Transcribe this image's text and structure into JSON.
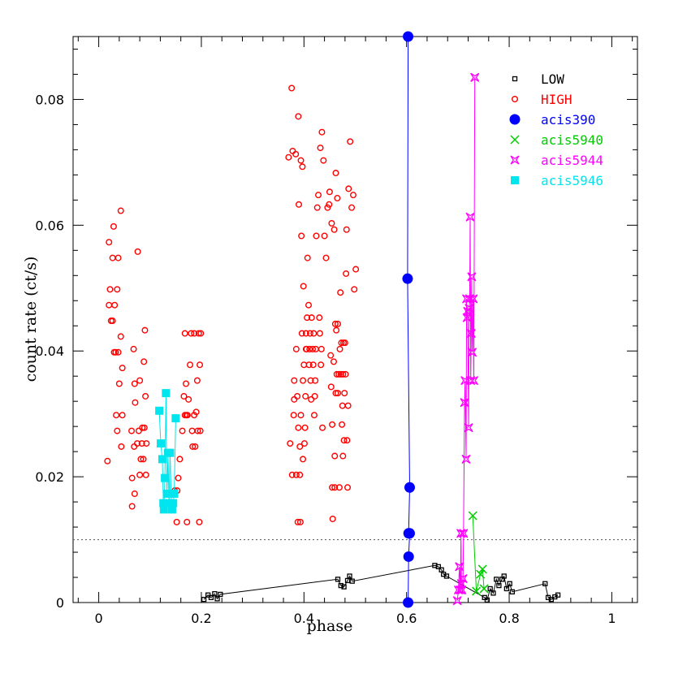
{
  "chart_data": {
    "type": "scatter",
    "title": "",
    "xlabel": "phase",
    "ylabel": "count rate (ct/s)",
    "xlim": [
      -0.05,
      1.05
    ],
    "ylim": [
      0,
      0.09
    ],
    "x_ticks": [
      0,
      0.2,
      0.4,
      0.6,
      0.8,
      1
    ],
    "x_tick_labels": [
      "0",
      "0.2",
      "0.4",
      "0.6",
      "0.8",
      "1"
    ],
    "y_ticks": [
      0,
      0.02,
      0.04,
      0.06,
      0.08
    ],
    "y_tick_labels": [
      "0",
      "0.02",
      "0.04",
      "0.06",
      "0.08"
    ],
    "reference_line": {
      "y": 0.01,
      "style": "dotted"
    },
    "legend_position": "top-right",
    "series": [
      {
        "name": "LOW",
        "color": "#000000",
        "marker": "open-square",
        "size": 5,
        "connected": true,
        "points": [
          [
            0.205,
            0.0005
          ],
          [
            0.213,
            0.0012
          ],
          [
            0.219,
            0.0008
          ],
          [
            0.226,
            0.0014
          ],
          [
            0.231,
            0.0006
          ],
          [
            0.237,
            0.0013
          ],
          [
            0.466,
            0.0037
          ],
          [
            0.472,
            0.0027
          ],
          [
            0.478,
            0.0025
          ],
          [
            0.485,
            0.0035
          ],
          [
            0.489,
            0.0042
          ],
          [
            0.494,
            0.0034
          ],
          [
            0.655,
            0.0059
          ],
          [
            0.662,
            0.0057
          ],
          [
            0.668,
            0.0052
          ],
          [
            0.672,
            0.0045
          ],
          [
            0.678,
            0.0042
          ],
          [
            0.752,
            0.0008
          ],
          [
            0.757,
            0.0004
          ],
          [
            0.763,
            0.0022
          ],
          [
            0.769,
            0.0015
          ],
          [
            0.775,
            0.0037
          ],
          [
            0.78,
            0.0027
          ],
          [
            0.786,
            0.0037
          ],
          [
            0.79,
            0.0042
          ],
          [
            0.795,
            0.0022
          ],
          [
            0.801,
            0.003
          ],
          [
            0.806,
            0.0017
          ],
          [
            0.87,
            0.003
          ],
          [
            0.876,
            0.0008
          ],
          [
            0.882,
            0.0005
          ],
          [
            0.889,
            0.0009
          ],
          [
            0.895,
            0.0012
          ]
        ]
      },
      {
        "name": "HIGH",
        "color": "#ff0000",
        "marker": "open-circle",
        "size": 3.3,
        "connected": false,
        "points": [
          [
            0.017,
            0.0225
          ],
          [
            0.02,
            0.0573
          ],
          [
            0.022,
            0.0498
          ],
          [
            0.02,
            0.0473
          ],
          [
            0.024,
            0.0448
          ],
          [
            0.027,
            0.0548
          ],
          [
            0.029,
            0.0598
          ],
          [
            0.027,
            0.0448
          ],
          [
            0.03,
            0.0398
          ],
          [
            0.031,
            0.0473
          ],
          [
            0.033,
            0.0398
          ],
          [
            0.034,
            0.0298
          ],
          [
            0.036,
            0.0273
          ],
          [
            0.036,
            0.0498
          ],
          [
            0.038,
            0.0548
          ],
          [
            0.038,
            0.0398
          ],
          [
            0.04,
            0.0348
          ],
          [
            0.043,
            0.0423
          ],
          [
            0.043,
            0.0623
          ],
          [
            0.044,
            0.0248
          ],
          [
            0.046,
            0.0298
          ],
          [
            0.046,
            0.0373
          ],
          [
            0.065,
            0.0153
          ],
          [
            0.064,
            0.0273
          ],
          [
            0.065,
            0.0198
          ],
          [
            0.068,
            0.0403
          ],
          [
            0.069,
            0.0248
          ],
          [
            0.07,
            0.0348
          ],
          [
            0.07,
            0.0173
          ],
          [
            0.071,
            0.0318
          ],
          [
            0.075,
            0.0253
          ],
          [
            0.076,
            0.0558
          ],
          [
            0.078,
            0.0273
          ],
          [
            0.08,
            0.0353
          ],
          [
            0.08,
            0.0203
          ],
          [
            0.082,
            0.0228
          ],
          [
            0.084,
            0.0253
          ],
          [
            0.085,
            0.0278
          ],
          [
            0.087,
            0.0228
          ],
          [
            0.088,
            0.0383
          ],
          [
            0.089,
            0.0278
          ],
          [
            0.09,
            0.0433
          ],
          [
            0.091,
            0.0328
          ],
          [
            0.092,
            0.0203
          ],
          [
            0.093,
            0.0253
          ],
          [
            0.148,
            0.0178
          ],
          [
            0.152,
            0.0128
          ],
          [
            0.153,
            0.0178
          ],
          [
            0.155,
            0.0198
          ],
          [
            0.158,
            0.0228
          ],
          [
            0.163,
            0.0273
          ],
          [
            0.166,
            0.0328
          ],
          [
            0.168,
            0.0428
          ],
          [
            0.168,
            0.0298
          ],
          [
            0.17,
            0.0348
          ],
          [
            0.171,
            0.0298
          ],
          [
            0.172,
            0.0128
          ],
          [
            0.173,
            0.0298
          ],
          [
            0.175,
            0.0323
          ],
          [
            0.178,
            0.0378
          ],
          [
            0.18,
            0.0428
          ],
          [
            0.182,
            0.0273
          ],
          [
            0.183,
            0.0248
          ],
          [
            0.186,
            0.0298
          ],
          [
            0.186,
            0.0428
          ],
          [
            0.188,
            0.0248
          ],
          [
            0.19,
            0.0303
          ],
          [
            0.192,
            0.0353
          ],
          [
            0.193,
            0.0273
          ],
          [
            0.195,
            0.0428
          ],
          [
            0.196,
            0.0128
          ],
          [
            0.197,
            0.0378
          ],
          [
            0.198,
            0.0273
          ],
          [
            0.199,
            0.0428
          ],
          [
            0.37,
            0.0708
          ],
          [
            0.373,
            0.0253
          ],
          [
            0.376,
            0.0818
          ],
          [
            0.377,
            0.0203
          ],
          [
            0.378,
            0.0718
          ],
          [
            0.38,
            0.0298
          ],
          [
            0.381,
            0.0323
          ],
          [
            0.381,
            0.0353
          ],
          [
            0.384,
            0.0713
          ],
          [
            0.385,
            0.0403
          ],
          [
            0.385,
            0.0203
          ],
          [
            0.387,
            0.0328
          ],
          [
            0.388,
            0.0128
          ],
          [
            0.389,
            0.0773
          ],
          [
            0.389,
            0.0278
          ],
          [
            0.39,
            0.0633
          ],
          [
            0.392,
            0.0203
          ],
          [
            0.392,
            0.0248
          ],
          [
            0.393,
            0.0128
          ],
          [
            0.394,
            0.0298
          ],
          [
            0.394,
            0.0703
          ],
          [
            0.395,
            0.0583
          ],
          [
            0.396,
            0.0428
          ],
          [
            0.397,
            0.0693
          ],
          [
            0.398,
            0.0353
          ],
          [
            0.398,
            0.0228
          ],
          [
            0.399,
            0.0503
          ],
          [
            0.4,
            0.0378
          ],
          [
            0.401,
            0.0253
          ],
          [
            0.402,
            0.0278
          ],
          [
            0.403,
            0.0328
          ],
          [
            0.404,
            0.0403
          ],
          [
            0.404,
            0.0428
          ],
          [
            0.405,
            0.0403
          ],
          [
            0.406,
            0.0453
          ],
          [
            0.407,
            0.0548
          ],
          [
            0.409,
            0.0473
          ],
          [
            0.41,
            0.0378
          ],
          [
            0.411,
            0.0403
          ],
          [
            0.412,
            0.0428
          ],
          [
            0.413,
            0.0353
          ],
          [
            0.414,
            0.0323
          ],
          [
            0.415,
            0.0453
          ],
          [
            0.417,
            0.0403
          ],
          [
            0.418,
            0.0378
          ],
          [
            0.419,
            0.0428
          ],
          [
            0.42,
            0.0298
          ],
          [
            0.421,
            0.0328
          ],
          [
            0.422,
            0.0353
          ],
          [
            0.423,
            0.0403
          ],
          [
            0.424,
            0.0583
          ],
          [
            0.426,
            0.0628
          ],
          [
            0.428,
            0.0648
          ],
          [
            0.43,
            0.0453
          ],
          [
            0.431,
            0.0428
          ],
          [
            0.432,
            0.0723
          ],
          [
            0.433,
            0.0378
          ],
          [
            0.434,
            0.0403
          ],
          [
            0.435,
            0.0748
          ],
          [
            0.436,
            0.0278
          ],
          [
            0.438,
            0.0703
          ],
          [
            0.44,
            0.0583
          ],
          [
            0.443,
            0.0548
          ],
          [
            0.446,
            0.0628
          ],
          [
            0.449,
            0.0633
          ],
          [
            0.45,
            0.0653
          ],
          [
            0.452,
            0.0393
          ],
          [
            0.453,
            0.0343
          ],
          [
            0.454,
            0.0603
          ],
          [
            0.455,
            0.0283
          ],
          [
            0.455,
            0.0183
          ],
          [
            0.456,
            0.0133
          ],
          [
            0.458,
            0.0383
          ],
          [
            0.459,
            0.0593
          ],
          [
            0.46,
            0.0233
          ],
          [
            0.46,
            0.0183
          ],
          [
            0.461,
            0.0443
          ],
          [
            0.462,
            0.0683
          ],
          [
            0.462,
            0.0333
          ],
          [
            0.463,
            0.0433
          ],
          [
            0.464,
            0.0363
          ],
          [
            0.465,
            0.0643
          ],
          [
            0.466,
            0.0443
          ],
          [
            0.466,
            0.0333
          ],
          [
            0.468,
            0.0363
          ],
          [
            0.469,
            0.0183
          ],
          [
            0.47,
            0.0403
          ],
          [
            0.471,
            0.0493
          ],
          [
            0.472,
            0.0363
          ],
          [
            0.473,
            0.0413
          ],
          [
            0.474,
            0.0283
          ],
          [
            0.475,
            0.0313
          ],
          [
            0.476,
            0.0363
          ],
          [
            0.476,
            0.0233
          ],
          [
            0.477,
            0.0413
          ],
          [
            0.478,
            0.0258
          ],
          [
            0.479,
            0.0333
          ],
          [
            0.48,
            0.0413
          ],
          [
            0.481,
            0.0363
          ],
          [
            0.482,
            0.0523
          ],
          [
            0.483,
            0.0593
          ],
          [
            0.484,
            0.0258
          ],
          [
            0.485,
            0.0183
          ],
          [
            0.486,
            0.0313
          ],
          [
            0.487,
            0.0658
          ],
          [
            0.49,
            0.0733
          ],
          [
            0.493,
            0.0628
          ],
          [
            0.496,
            0.0648
          ],
          [
            0.498,
            0.0498
          ],
          [
            0.501,
            0.053
          ]
        ]
      },
      {
        "name": "acis390",
        "color": "#0000ff",
        "marker": "filled-circle",
        "size": 6.5,
        "connected": true,
        "points": [
          [
            0.603,
            0.09
          ],
          [
            0.602,
            0.0515
          ],
          [
            0.606,
            0.0183
          ],
          [
            0.604,
            0.011
          ],
          [
            0.606,
            0.011
          ],
          [
            0.604,
            0.0073
          ],
          [
            0.603,
            0.0
          ]
        ]
      },
      {
        "name": "acis5940",
        "color": "#00cc00",
        "marker": "x",
        "size": 5,
        "connected": true,
        "points": [
          [
            0.729,
            0.0138
          ],
          [
            0.736,
            0.0018
          ],
          [
            0.744,
            0.0045
          ],
          [
            0.748,
            0.0053
          ],
          [
            0.751,
            0.0022
          ]
        ]
      },
      {
        "name": "acis5944",
        "color": "#ff00ff",
        "marker": "star4",
        "size": 5,
        "connected": true,
        "points": [
          [
            0.699,
            0.0003
          ],
          [
            0.701,
            0.002
          ],
          [
            0.703,
            0.0057
          ],
          [
            0.705,
            0.002
          ],
          [
            0.706,
            0.011
          ],
          [
            0.707,
            0.003
          ],
          [
            0.708,
            0.002
          ],
          [
            0.71,
            0.0038
          ],
          [
            0.711,
            0.011
          ],
          [
            0.713,
            0.0318
          ],
          [
            0.714,
            0.0353
          ],
          [
            0.716,
            0.0228
          ],
          [
            0.717,
            0.0483
          ],
          [
            0.718,
            0.0453
          ],
          [
            0.719,
            0.0463
          ],
          [
            0.721,
            0.0278
          ],
          [
            0.722,
            0.0468
          ],
          [
            0.723,
            0.0483
          ],
          [
            0.724,
            0.0613
          ],
          [
            0.725,
            0.0353
          ],
          [
            0.726,
            0.0428
          ],
          [
            0.727,
            0.0518
          ],
          [
            0.728,
            0.0398
          ],
          [
            0.73,
            0.0483
          ],
          [
            0.731,
            0.0353
          ],
          [
            0.733,
            0.0835
          ]
        ]
      },
      {
        "name": "acis5946",
        "color": "#00e5ee",
        "marker": "filled-square",
        "size": 5,
        "connected": true,
        "points": [
          [
            0.118,
            0.0305
          ],
          [
            0.121,
            0.0253
          ],
          [
            0.124,
            0.0228
          ],
          [
            0.126,
            0.0158
          ],
          [
            0.127,
            0.0148
          ],
          [
            0.129,
            0.0198
          ],
          [
            0.131,
            0.0333
          ],
          [
            0.133,
            0.0173
          ],
          [
            0.135,
            0.0238
          ],
          [
            0.137,
            0.0158
          ],
          [
            0.139,
            0.0238
          ],
          [
            0.141,
            0.0173
          ],
          [
            0.143,
            0.0148
          ],
          [
            0.145,
            0.0158
          ],
          [
            0.147,
            0.0173
          ],
          [
            0.15,
            0.0293
          ]
        ]
      }
    ]
  }
}
